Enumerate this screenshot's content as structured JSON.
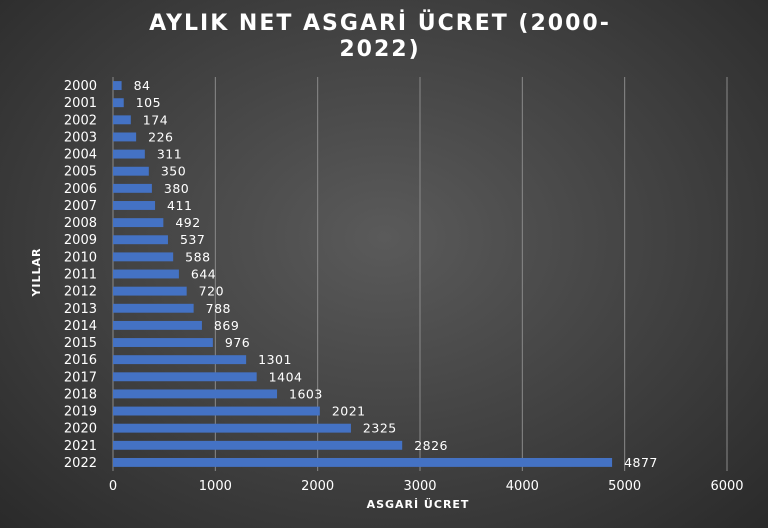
{
  "chart_data": {
    "type": "bar",
    "orientation": "horizontal",
    "title_lines": [
      "AYLIK NET ASGARİ ÜCRET (2000-",
      "2022)"
    ],
    "xlabel": "ASGARİ ÜCRET",
    "ylabel": "YILLAR",
    "xlim": [
      0,
      6000
    ],
    "xticks": [
      "0",
      "1000",
      "2000",
      "3000",
      "4000",
      "5000",
      "6000"
    ],
    "grid": true,
    "bar_color": "#4472c4",
    "categories": [
      "2000",
      "2001",
      "2002",
      "2003",
      "2004",
      "2005",
      "2006",
      "2007",
      "2008",
      "2009",
      "2010",
      "2011",
      "2012",
      "2013",
      "2014",
      "2015",
      "2016",
      "2017",
      "2018",
      "2019",
      "2020",
      "2021",
      "2022"
    ],
    "values": [
      84,
      105,
      174,
      226,
      311,
      350,
      380,
      411,
      492,
      537,
      588,
      644,
      720,
      788,
      869,
      976,
      1301,
      1404,
      1603,
      2021,
      2325,
      2826,
      4877
    ],
    "data_labels": [
      "84",
      "105",
      "174",
      "226",
      "311",
      "350",
      "380",
      "411",
      "492",
      "537",
      "588",
      "644",
      "720",
      "788",
      "869",
      "976",
      "1301",
      "1404",
      "1603",
      "2021",
      "2325",
      "2826",
      "4877"
    ]
  }
}
